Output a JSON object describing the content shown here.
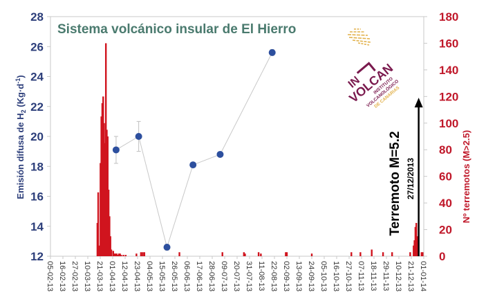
{
  "chart_data": {
    "type": "bar+line",
    "title": "Sistema volcánico insular de El Hierro",
    "xlabel": "",
    "ylabel_left": "Emisión difusa de H₂ (Kg·d⁻¹)",
    "ylabel_right": "Nº terremotos (M>2.5)",
    "ylim_left": [
      12,
      28
    ],
    "yticks_left": [
      12,
      14,
      16,
      18,
      20,
      22,
      24,
      26,
      28
    ],
    "ylim_right": [
      0,
      180
    ],
    "yticks_right": [
      0,
      20,
      40,
      60,
      80,
      100,
      120,
      140,
      160,
      180
    ],
    "xlim": [
      "05-02-13",
      "01-01-14"
    ],
    "x_tick_labels": [
      "05-02-13",
      "16-02-13",
      "27-02-13",
      "10-03-13",
      "21-03-13",
      "01-04-13",
      "12-04-13",
      "23-04-13",
      "04-05-13",
      "15-05-13",
      "26-05-13",
      "06-06-13",
      "17-06-13",
      "28-06-13",
      "09-07-13",
      "20-07-13",
      "31-07-13",
      "11-08-13",
      "22-08-13",
      "02-09-13",
      "13-09-13",
      "24-09-13",
      "05-10-13",
      "16-10-13",
      "27-10-13",
      "07-11-13",
      "18-11-13",
      "29-11-13",
      "10-12-13",
      "21-12-13",
      "01-01-14"
    ],
    "grid": false,
    "legend": null,
    "series": [
      {
        "name": "Emisión difusa de H₂",
        "type": "line",
        "axis": "left",
        "color": "#2d4f9e",
        "line_color": "#c8c8c8",
        "points": [
          {
            "day": 58,
            "value": 19.1,
            "err": 0.9
          },
          {
            "day": 78,
            "value": 20.0,
            "err": 1.0
          },
          {
            "day": 103,
            "value": 12.6,
            "err": 0.2
          },
          {
            "day": 126,
            "value": 18.1,
            "err": 0
          },
          {
            "day": 150,
            "value": 18.8,
            "err": 0
          },
          {
            "day": 196,
            "value": 25.6,
            "err": 0.2
          }
        ]
      },
      {
        "name": "Nº terremotos (M>2.5)",
        "type": "bar",
        "axis": "right",
        "color": "#d0141e",
        "bars": [
          {
            "day": 41.5,
            "value": 25
          },
          {
            "day": 42.2,
            "value": 48
          },
          {
            "day": 43.5,
            "value": 8
          },
          {
            "day": 44.2,
            "value": 70
          },
          {
            "day": 45,
            "value": 105
          },
          {
            "day": 45.8,
            "value": 115
          },
          {
            "day": 46.6,
            "value": 120
          },
          {
            "day": 47.4,
            "value": 100
          },
          {
            "day": 48.2,
            "value": 85
          },
          {
            "day": 49,
            "value": 160
          },
          {
            "day": 49.8,
            "value": 95
          },
          {
            "day": 50.6,
            "value": 90
          },
          {
            "day": 51.4,
            "value": 50
          },
          {
            "day": 52.2,
            "value": 30
          },
          {
            "day": 53,
            "value": 15
          },
          {
            "day": 53.8,
            "value": 5
          },
          {
            "day": 55.5,
            "value": 4
          },
          {
            "day": 56.5,
            "value": 2
          },
          {
            "day": 57.5,
            "value": 2
          },
          {
            "day": 58.5,
            "value": 2
          },
          {
            "day": 59.5,
            "value": 1
          },
          {
            "day": 60.5,
            "value": 2
          },
          {
            "day": 61.5,
            "value": 2
          },
          {
            "day": 62.5,
            "value": 1
          },
          {
            "day": 64.5,
            "value": 1
          },
          {
            "day": 66.5,
            "value": 1
          },
          {
            "day": 76,
            "value": 2
          },
          {
            "day": 80,
            "value": 3
          },
          {
            "day": 81.5,
            "value": 3
          },
          {
            "day": 83,
            "value": 3
          },
          {
            "day": 114,
            "value": 3
          },
          {
            "day": 152,
            "value": 3
          },
          {
            "day": 171,
            "value": 3
          },
          {
            "day": 172,
            "value": 2
          },
          {
            "day": 184,
            "value": 3
          },
          {
            "day": 186,
            "value": 2
          },
          {
            "day": 208,
            "value": 3
          },
          {
            "day": 209,
            "value": 3
          },
          {
            "day": 231,
            "value": 2
          },
          {
            "day": 266,
            "value": 3
          },
          {
            "day": 274,
            "value": 3
          },
          {
            "day": 284,
            "value": 5
          },
          {
            "day": 294,
            "value": 3
          },
          {
            "day": 302,
            "value": 3
          },
          {
            "day": 318,
            "value": 3
          },
          {
            "day": 321,
            "value": 8
          },
          {
            "day": 321.8,
            "value": 12
          },
          {
            "day": 322.6,
            "value": 22
          },
          {
            "day": 323.4,
            "value": 25
          },
          {
            "day": 324.2,
            "value": 15
          },
          {
            "day": 325,
            "value": 3
          },
          {
            "day": 328,
            "value": 3
          },
          {
            "day": 329,
            "value": 3
          }
        ]
      }
    ],
    "annotations": [
      {
        "text": "Terremoto M=5.2",
        "subtext": "27/12/2013",
        "type": "arrow",
        "day": 325.5,
        "from": 0,
        "to": 117,
        "axis": "right"
      }
    ]
  },
  "header": {
    "title": "Sistema volcánico insular de El Hierro"
  },
  "axes": {
    "left_label_main": "Emisión difusa de H",
    "left_label_sub": "2",
    "left_label_unit": " (Kg·d",
    "left_label_sup": "-1",
    "left_label_close": ")",
    "right_label": "Nº terremotos (M>2.5)"
  },
  "annotation": {
    "main": "Terremoto M=5.2",
    "date": "27/12/2013"
  },
  "logo": {
    "line1": "IN",
    "line2": "VOLCAN",
    "text1": "INSTITUTO",
    "text2": "VOLCANOLÓGICO",
    "text3": "DE CANARIAS",
    "primary_color": "#7a1a4e",
    "accent_color": "#e2b14a"
  },
  "colors": {
    "left_axis": "#2c3e7a",
    "right_axis": "#c0182a",
    "bars": "#d0141e",
    "points": "#2d4f9e",
    "line": "#c8c8c8",
    "title": "#4a7a6e",
    "frame": "#c8c8c8"
  }
}
